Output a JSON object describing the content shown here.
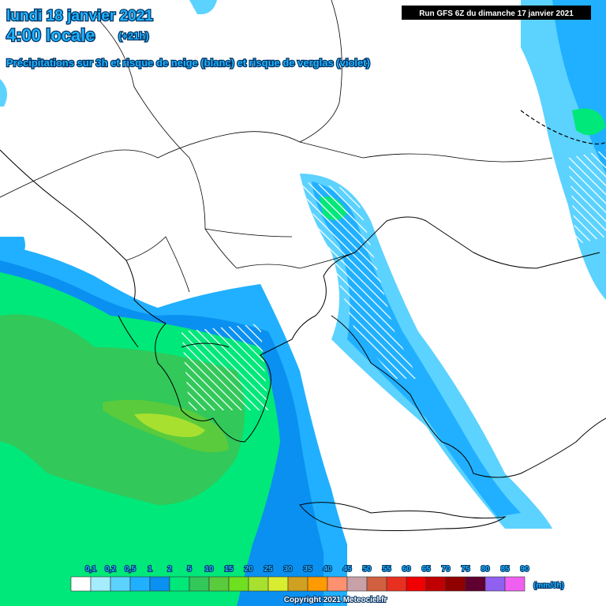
{
  "header": {
    "date": "lundi 18 janvier 2021",
    "time": "4:00 locale",
    "offset": "(+21h)",
    "subtitle": "Précipitations sur 3h et risque de neige (blanc) et risque de verglas (violet)",
    "run": "Run GFS 6Z du dimanche 17 janvier 2021"
  },
  "legend": {
    "labels": [
      "0,1",
      "0,2",
      "0,5",
      "1",
      "2",
      "5",
      "10",
      "15",
      "20",
      "25",
      "30",
      "35",
      "40",
      "45",
      "50",
      "55",
      "60",
      "65",
      "70",
      "75",
      "80",
      "85",
      "90"
    ],
    "colors": [
      "#ffffff",
      "#a6ecff",
      "#5cd2ff",
      "#20b0ff",
      "#0a90f0",
      "#00e87a",
      "#32c85a",
      "#5acb3c",
      "#6ee020",
      "#a8e030",
      "#d8ec30",
      "#d0a020",
      "#ff9a00",
      "#ff9070",
      "#c8a0a8",
      "#d06040",
      "#e83020",
      "#f00000",
      "#c00000",
      "#900000",
      "#600030",
      "#9060f0",
      "#f060f0"
    ],
    "unit": "(mm/3h)"
  },
  "footer": {
    "copyright": "Copyright 2021 Meteociel.fr"
  }
}
